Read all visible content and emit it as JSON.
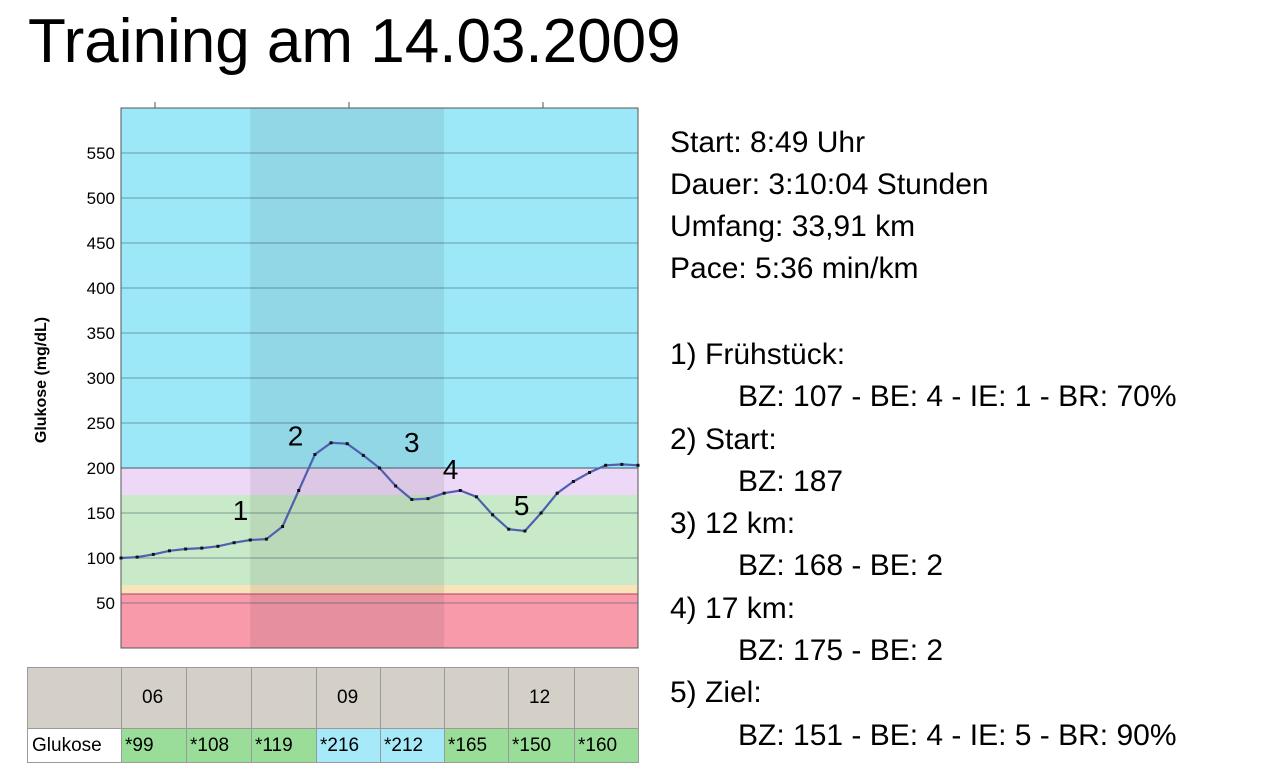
{
  "title": "Training am 14.03.2009",
  "stats": [
    "Start: 8:49 Uhr",
    "Dauer: 3:10:04 Stunden",
    "Umfang: 33,91 km",
    "Pace: 5:36 min/km"
  ],
  "events": [
    {
      "head": "1) Frühstück:",
      "detail": "BZ: 107 - BE: 4 - IE: 1 - BR: 70%"
    },
    {
      "head": "2) Start:",
      "detail": "BZ: 187"
    },
    {
      "head": "3) 12 km:",
      "detail": "BZ: 168 - BE: 2"
    },
    {
      "head": "4) 17 km:",
      "detail": "BZ: 175 - BE: 2"
    },
    {
      "head": "5) Ziel:",
      "detail": "BZ: 151 - BE: 4 - IE: 5 - BR: 90%"
    }
  ],
  "table": {
    "hour_labels": [
      "06",
      "",
      "",
      "09",
      "",
      "",
      "12",
      ""
    ],
    "row_label": "Glukose",
    "values": [
      {
        "text": "*99",
        "color": "#99dd99"
      },
      {
        "text": "*108",
        "color": "#99dd99"
      },
      {
        "text": "*119",
        "color": "#99dd99"
      },
      {
        "text": "*216",
        "color": "#a6e9f9"
      },
      {
        "text": "*212",
        "color": "#a6e9f9"
      },
      {
        "text": "*165",
        "color": "#99dd99"
      },
      {
        "text": "*150",
        "color": "#99dd99"
      },
      {
        "text": "*160",
        "color": "#99dd99"
      }
    ]
  },
  "chart_data": {
    "type": "line",
    "ylabel": "Glukose (mg/dL)",
    "ylim": [
      0,
      600
    ],
    "yticks": [
      50,
      100,
      150,
      200,
      250,
      300,
      350,
      400,
      450,
      500,
      550
    ],
    "xlim": [
      5,
      13
    ],
    "grid": true,
    "bands": [
      {
        "from": 200,
        "to": 600,
        "color": "#9de8f8"
      },
      {
        "from": 170,
        "to": 200,
        "color": "#edd8f7"
      },
      {
        "from": 70,
        "to": 170,
        "color": "#c8eac8"
      },
      {
        "from": 60,
        "to": 70,
        "color": "#f8e4b8"
      },
      {
        "from": 0,
        "to": 60,
        "color": "#f89aaa"
      }
    ],
    "highlight_x": [
      7,
      10
    ],
    "series": [
      {
        "color": "#5060b0",
        "x": [
          5.0,
          5.25,
          5.5,
          5.75,
          6.0,
          6.25,
          6.5,
          6.75,
          7.0,
          7.25,
          7.5,
          7.75,
          8.0,
          8.25,
          8.5,
          8.75,
          9.0,
          9.25,
          9.5,
          9.75,
          10.0,
          10.25,
          10.5,
          10.75,
          11.0,
          11.25,
          11.5,
          11.75,
          12.0,
          12.25,
          12.5,
          12.75,
          13.0
        ],
        "y": [
          100,
          101,
          104,
          108,
          110,
          111,
          113,
          117,
          120,
          121,
          135,
          175,
          215,
          228,
          227,
          214,
          200,
          180,
          165,
          166,
          172,
          175,
          168,
          148,
          132,
          130,
          150,
          172,
          185,
          195,
          203,
          204,
          203
        ]
      }
    ],
    "annotations": [
      {
        "label": "1",
        "x": 6.85,
        "y": 142
      },
      {
        "label": "2",
        "x": 7.7,
        "y": 225
      },
      {
        "label": "3",
        "x": 9.5,
        "y": 218
      },
      {
        "label": "4",
        "x": 10.1,
        "y": 188
      },
      {
        "label": "5",
        "x": 11.2,
        "y": 148
      }
    ]
  }
}
